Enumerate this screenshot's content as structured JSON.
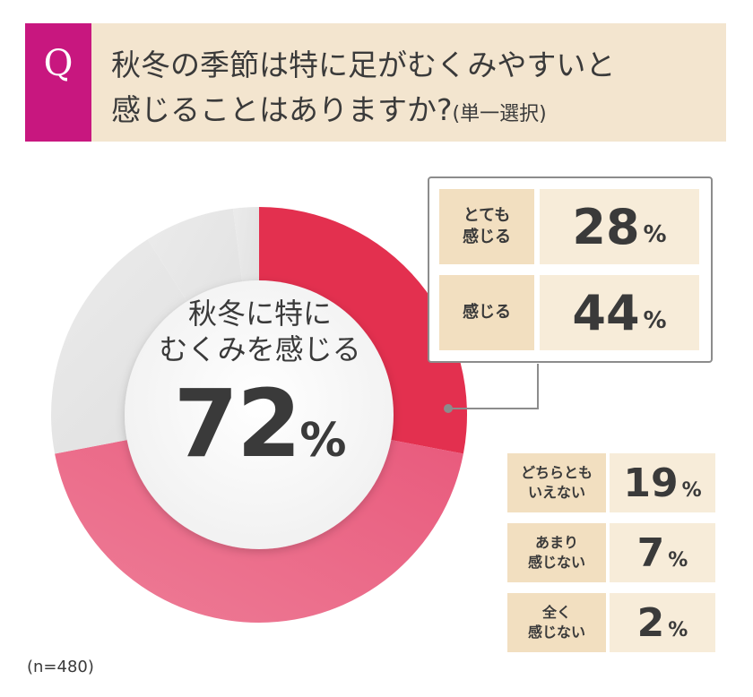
{
  "header": {
    "q_mark": "Q",
    "question_line1": "秋冬の季節は特に足がむくみやすいと",
    "question_line2": "感じることはありますか?",
    "question_note": "(単一選択)"
  },
  "center_label": {
    "line1": "秋冬に特に",
    "line2": "むくみを感じる",
    "value": "72",
    "unit": "%"
  },
  "sample": "(n=480)",
  "colors": {
    "accent": "#c8177f",
    "red_dark": "#e0284a",
    "red_light": "#ec6f8d",
    "grey": "#e5e5e5",
    "beige": "#f3e5cf"
  },
  "chart_data": {
    "type": "pie",
    "categories": [
      "とても感じる",
      "感じる",
      "どちらともいえない",
      "あまり感じない",
      "全く感じない"
    ],
    "values": [
      28,
      44,
      19,
      7,
      2
    ],
    "unit": "%",
    "labels": [
      {
        "line1": "とても",
        "line2": "感じる",
        "value": "28",
        "unit": "%"
      },
      {
        "line1": "感じる",
        "line2": "",
        "value": "44",
        "unit": "%"
      },
      {
        "line1": "どちらとも",
        "line2": "いえない",
        "value": "19",
        "unit": "%"
      },
      {
        "line1": "あまり",
        "line2": "感じない",
        "value": "7",
        "unit": "%"
      },
      {
        "line1": "全く",
        "line2": "感じない",
        "value": "2",
        "unit": "%"
      }
    ],
    "highlight_total": 72
  }
}
